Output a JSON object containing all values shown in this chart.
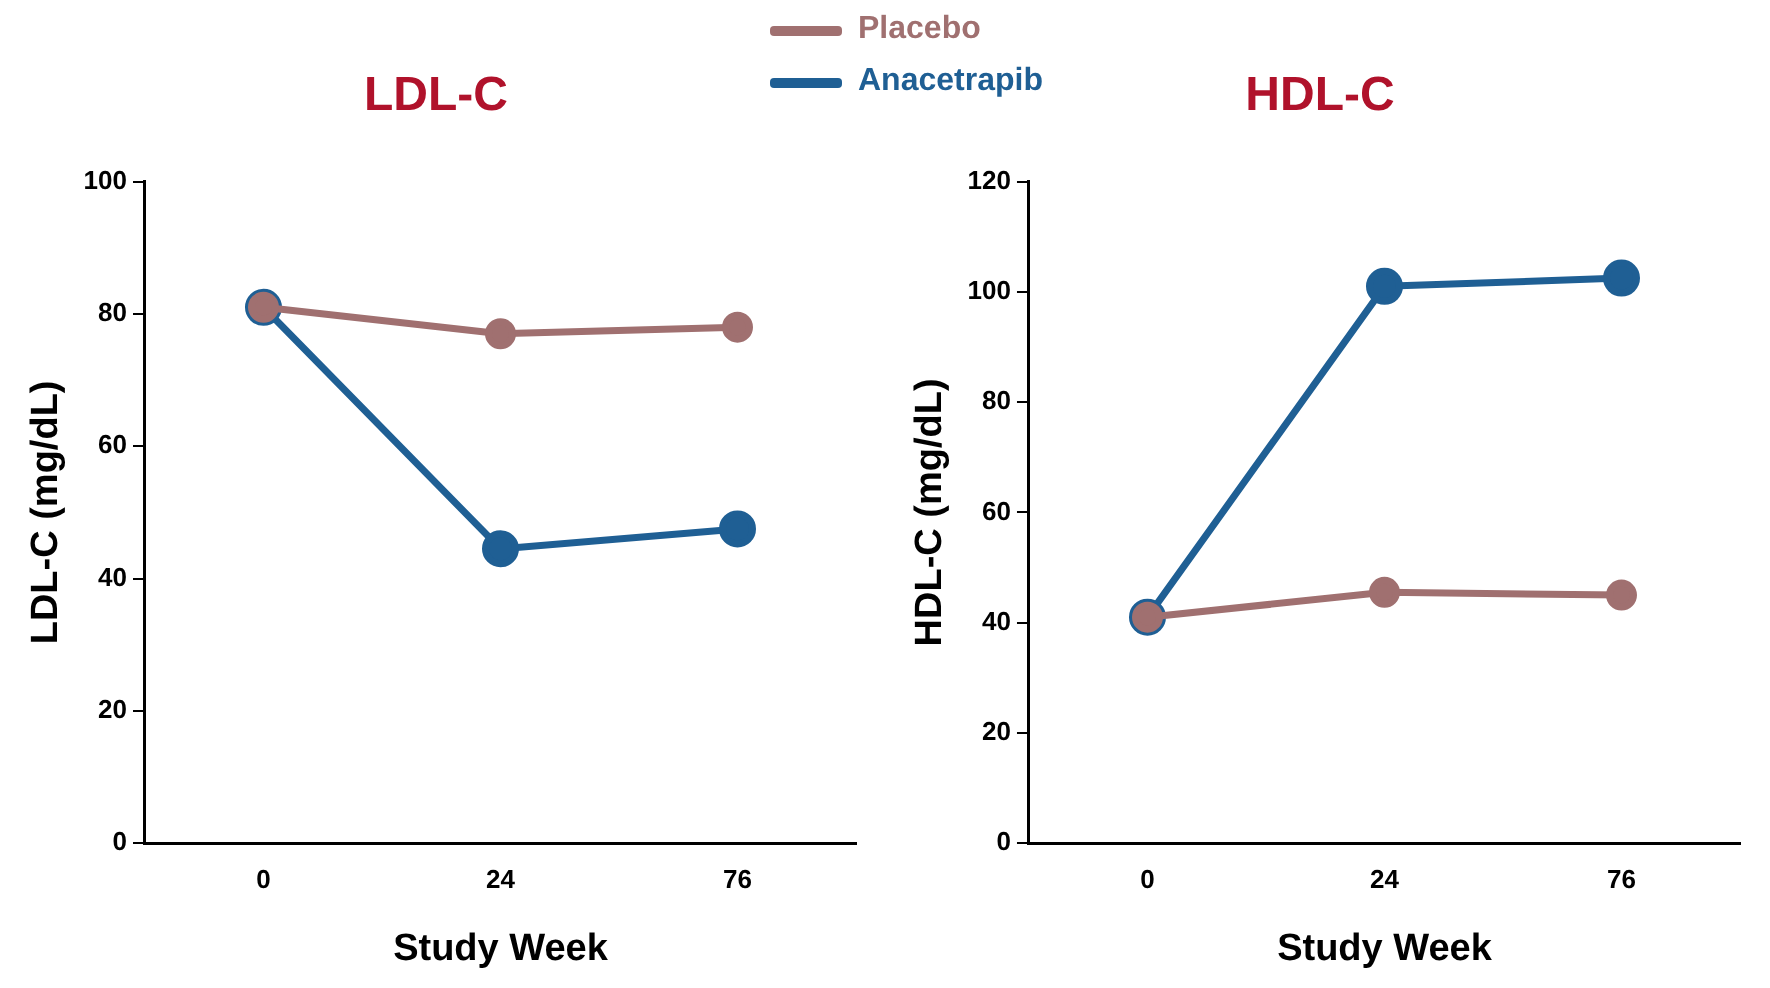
{
  "chart_data": [
    {
      "type": "line",
      "title": "LDL-C",
      "xlabel": "Study Week",
      "ylabel": "LDL-C (mg/dL)",
      "categories": [
        "0",
        "24",
        "76"
      ],
      "ylim": [
        0,
        100
      ],
      "yticks": [
        0,
        20,
        40,
        60,
        80,
        100
      ],
      "marker": "circle",
      "legend": "top",
      "series": [
        {
          "name": "Placebo",
          "color": "#a07070",
          "values": [
            81,
            77,
            78
          ]
        },
        {
          "name": "Anacetrapib",
          "color": "#1f5f94",
          "values": [
            81,
            44.5,
            47.5
          ]
        }
      ]
    },
    {
      "type": "line",
      "title": "HDL-C",
      "xlabel": "Study Week",
      "ylabel": "HDL-C (mg/dL)",
      "categories": [
        "0",
        "24",
        "76"
      ],
      "ylim": [
        0,
        120
      ],
      "yticks": [
        0,
        20,
        40,
        60,
        80,
        100,
        120
      ],
      "marker": "circle",
      "legend": "top",
      "series": [
        {
          "name": "Placebo",
          "color": "#a07070",
          "values": [
            41,
            45.5,
            45
          ]
        },
        {
          "name": "Anacetrapib",
          "color": "#1f5f94",
          "values": [
            41,
            101,
            102.5
          ]
        }
      ]
    }
  ]
}
